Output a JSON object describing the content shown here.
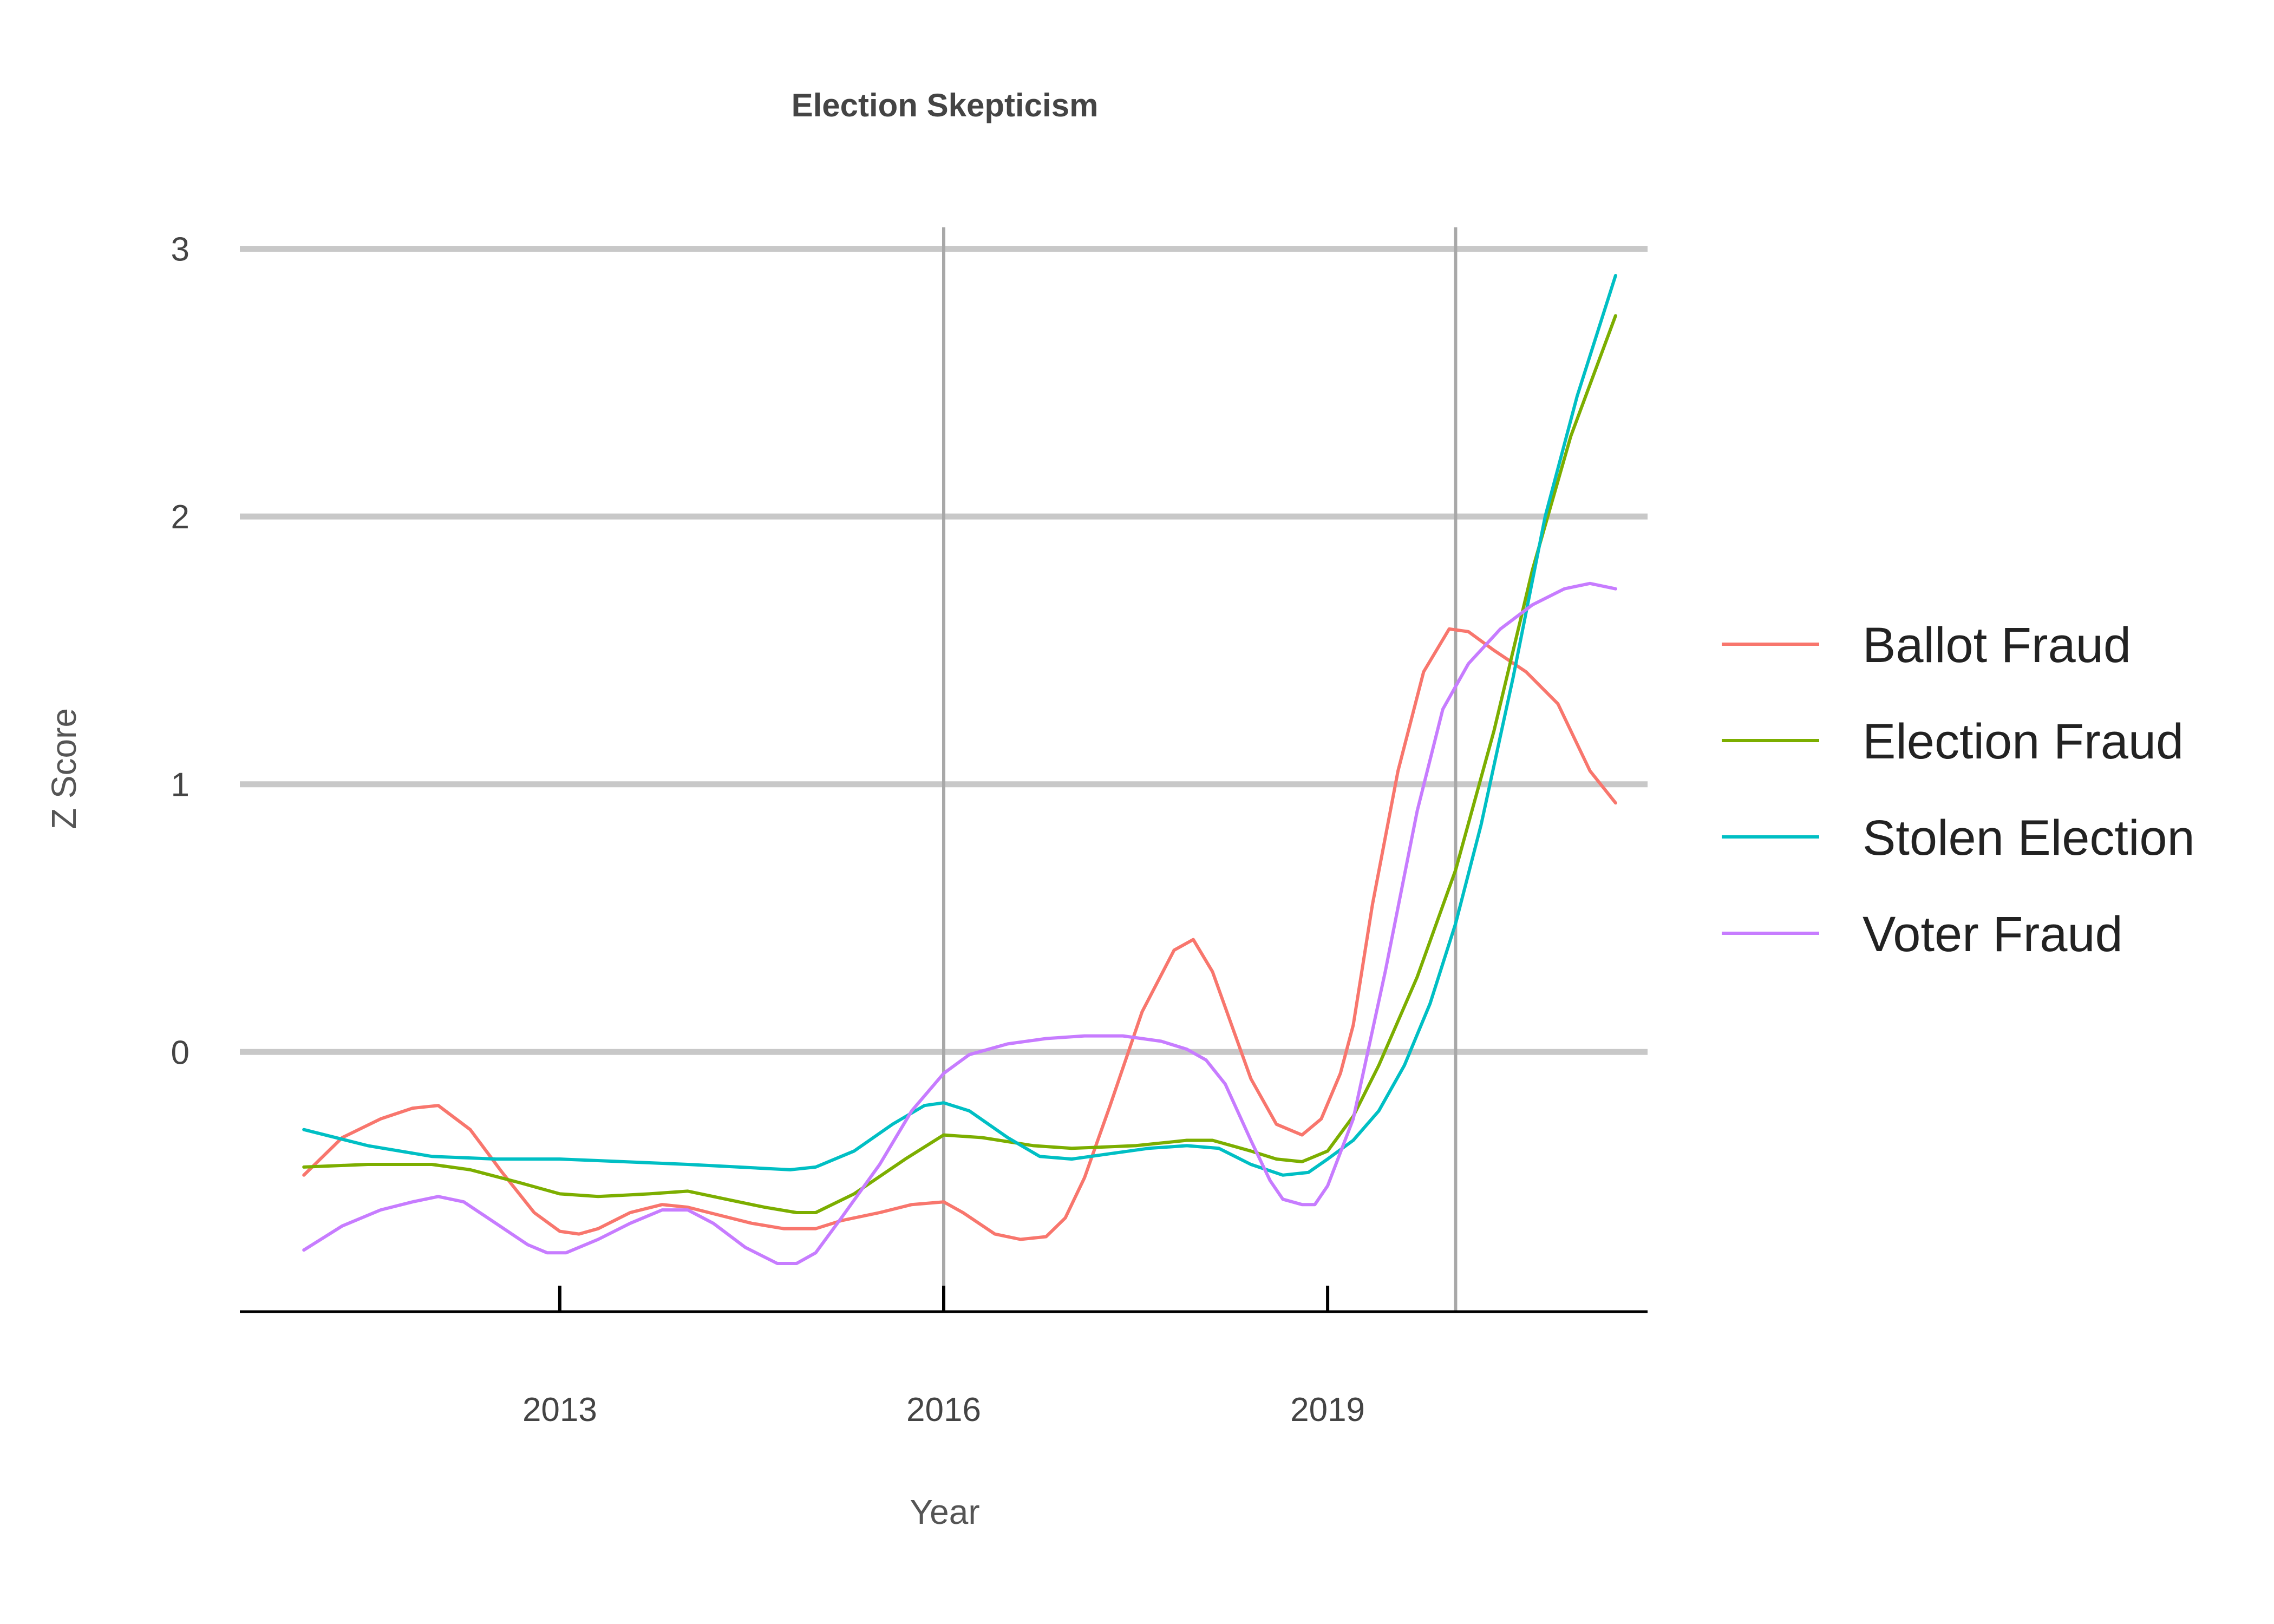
{
  "chart_data": {
    "type": "line",
    "title": "Election Skepticism",
    "xlabel": "Year",
    "ylabel": "Z Score",
    "xlim": [
      2010.5,
      2021.5
    ],
    "ylim": [
      -0.97,
      3.08
    ],
    "x_ticks": [
      2013,
      2016,
      2019
    ],
    "y_ticks": [
      0,
      1,
      2,
      3
    ],
    "reference_lines_x": [
      2016,
      2020
    ],
    "grid": "horizontal",
    "legend_position": "right",
    "series": [
      {
        "name": "Ballot Fraud",
        "color": "#F8766D",
        "x": [
          2011.0,
          2011.3,
          2011.6,
          2011.85,
          2012.05,
          2012.3,
          2012.55,
          2012.8,
          2013.0,
          2013.15,
          2013.3,
          2013.55,
          2013.8,
          2014.0,
          2014.25,
          2014.5,
          2014.75,
          2015.0,
          2015.2,
          2015.5,
          2015.75,
          2016.0,
          2016.15,
          2016.4,
          2016.6,
          2016.8,
          2016.95,
          2017.1,
          2017.3,
          2017.55,
          2017.8,
          2017.95,
          2018.1,
          2018.25,
          2018.4,
          2018.6,
          2018.8,
          2018.95,
          2019.1,
          2019.2,
          2019.35,
          2019.55,
          2019.75,
          2019.95,
          2020.1,
          2020.3,
          2020.55,
          2020.8,
          2021.05,
          2021.25
        ],
        "y": [
          -0.46,
          -0.32,
          -0.25,
          -0.21,
          -0.2,
          -0.29,
          -0.45,
          -0.6,
          -0.67,
          -0.68,
          -0.66,
          -0.6,
          -0.57,
          -0.58,
          -0.61,
          -0.64,
          -0.66,
          -0.66,
          -0.63,
          -0.6,
          -0.57,
          -0.56,
          -0.6,
          -0.68,
          -0.7,
          -0.69,
          -0.62,
          -0.47,
          -0.2,
          0.15,
          0.38,
          0.42,
          0.3,
          0.1,
          -0.1,
          -0.27,
          -0.31,
          -0.25,
          -0.08,
          0.1,
          0.55,
          1.05,
          1.42,
          1.58,
          1.57,
          1.5,
          1.42,
          1.3,
          1.05,
          0.93
        ]
      },
      {
        "name": "Election Fraud",
        "color": "#7CAE00",
        "x": [
          2011.0,
          2011.5,
          2012.0,
          2012.3,
          2012.7,
          2013.0,
          2013.3,
          2013.7,
          2014.0,
          2014.3,
          2014.6,
          2014.85,
          2015.0,
          2015.3,
          2015.7,
          2016.0,
          2016.3,
          2016.7,
          2017.0,
          2017.5,
          2017.9,
          2018.1,
          2018.4,
          2018.6,
          2018.8,
          2019.0,
          2019.2,
          2019.4,
          2019.7,
          2020.0,
          2020.3,
          2020.6,
          2020.9,
          2021.25
        ],
        "y": [
          -0.43,
          -0.42,
          -0.42,
          -0.44,
          -0.49,
          -0.53,
          -0.54,
          -0.53,
          -0.52,
          -0.55,
          -0.58,
          -0.6,
          -0.6,
          -0.53,
          -0.4,
          -0.31,
          -0.32,
          -0.35,
          -0.36,
          -0.35,
          -0.33,
          -0.33,
          -0.37,
          -0.4,
          -0.41,
          -0.37,
          -0.24,
          -0.05,
          0.28,
          0.68,
          1.2,
          1.8,
          2.3,
          2.75
        ]
      },
      {
        "name": "Stolen Election",
        "color": "#00BFC4",
        "x": [
          2011.0,
          2011.5,
          2012.0,
          2012.5,
          2013.0,
          2013.5,
          2014.0,
          2014.4,
          2014.8,
          2015.0,
          2015.3,
          2015.6,
          2015.85,
          2016.0,
          2016.2,
          2016.5,
          2016.75,
          2017.0,
          2017.3,
          2017.6,
          2017.9,
          2018.15,
          2018.4,
          2018.65,
          2018.85,
          2019.0,
          2019.2,
          2019.4,
          2019.6,
          2019.8,
          2020.0,
          2020.2,
          2020.45,
          2020.7,
          2020.95,
          2021.25
        ],
        "y": [
          -0.29,
          -0.35,
          -0.39,
          -0.4,
          -0.4,
          -0.41,
          -0.42,
          -0.43,
          -0.44,
          -0.43,
          -0.37,
          -0.27,
          -0.2,
          -0.19,
          -0.22,
          -0.32,
          -0.39,
          -0.4,
          -0.38,
          -0.36,
          -0.35,
          -0.36,
          -0.42,
          -0.46,
          -0.45,
          -0.4,
          -0.33,
          -0.22,
          -0.05,
          0.18,
          0.48,
          0.85,
          1.4,
          2.0,
          2.45,
          2.9
        ]
      },
      {
        "name": "Voter Fraud",
        "color": "#C77CFF",
        "x": [
          2011.0,
          2011.3,
          2011.6,
          2011.85,
          2012.05,
          2012.25,
          2012.5,
          2012.75,
          2012.9,
          2013.05,
          2013.3,
          2013.55,
          2013.8,
          2014.0,
          2014.2,
          2014.45,
          2014.7,
          2014.85,
          2015.0,
          2015.2,
          2015.5,
          2015.75,
          2016.0,
          2016.2,
          2016.5,
          2016.8,
          2017.1,
          2017.4,
          2017.7,
          2017.9,
          2018.05,
          2018.2,
          2018.4,
          2018.55,
          2018.65,
          2018.8,
          2018.9,
          2019.0,
          2019.2,
          2019.45,
          2019.7,
          2019.9,
          2020.1,
          2020.35,
          2020.6,
          2020.85,
          2021.05,
          2021.25
        ],
        "y": [
          -0.74,
          -0.65,
          -0.59,
          -0.56,
          -0.54,
          -0.56,
          -0.64,
          -0.72,
          -0.75,
          -0.75,
          -0.7,
          -0.64,
          -0.59,
          -0.59,
          -0.64,
          -0.73,
          -0.79,
          -0.79,
          -0.75,
          -0.62,
          -0.42,
          -0.22,
          -0.08,
          -0.01,
          0.03,
          0.05,
          0.06,
          0.06,
          0.04,
          0.01,
          -0.03,
          -0.12,
          -0.33,
          -0.48,
          -0.55,
          -0.57,
          -0.57,
          -0.5,
          -0.25,
          0.3,
          0.9,
          1.28,
          1.45,
          1.58,
          1.67,
          1.73,
          1.75,
          1.73
        ]
      }
    ]
  }
}
